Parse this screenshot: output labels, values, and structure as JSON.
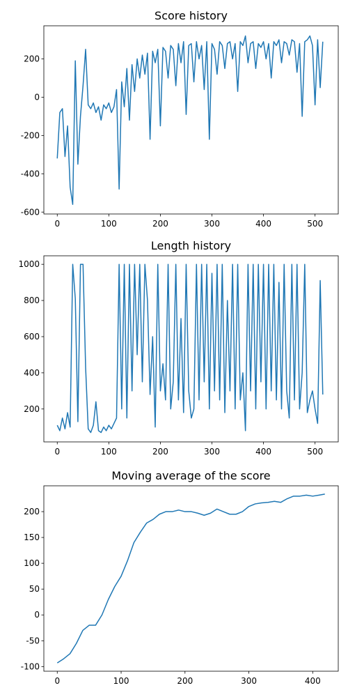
{
  "chart_data": [
    {
      "type": "line",
      "title": "Score history",
      "color": "#1f77b4",
      "grid": false,
      "xlim": [
        -26,
        545
      ],
      "ylim": [
        -610,
        373
      ],
      "xticks": [
        0,
        100,
        200,
        300,
        400,
        500
      ],
      "yticks": [
        -600,
        -400,
        -200,
        0,
        200
      ],
      "x": [
        0,
        5,
        10,
        15,
        20,
        25,
        30,
        35,
        40,
        45,
        50,
        55,
        60,
        65,
        70,
        75,
        80,
        85,
        90,
        95,
        100,
        105,
        110,
        115,
        120,
        125,
        130,
        135,
        140,
        145,
        150,
        155,
        160,
        165,
        170,
        175,
        180,
        185,
        190,
        195,
        200,
        205,
        210,
        215,
        220,
        225,
        230,
        235,
        240,
        245,
        250,
        255,
        260,
        265,
        270,
        275,
        280,
        285,
        290,
        295,
        300,
        305,
        310,
        315,
        320,
        325,
        330,
        335,
        340,
        345,
        350,
        355,
        360,
        365,
        370,
        375,
        380,
        385,
        390,
        395,
        400,
        405,
        410,
        415,
        420,
        425,
        430,
        435,
        440,
        445,
        450,
        455,
        460,
        465,
        470,
        475,
        480,
        485,
        490,
        495,
        500,
        505,
        510,
        515
      ],
      "series": [
        {
          "name": "score",
          "color": "#1f77b4",
          "values": [
            -320,
            -80,
            -60,
            -310,
            -150,
            -470,
            -560,
            190,
            -350,
            -100,
            60,
            250,
            -40,
            -60,
            -30,
            -80,
            -50,
            -120,
            -40,
            -60,
            -30,
            -80,
            -50,
            40,
            -480,
            80,
            -50,
            150,
            -120,
            170,
            30,
            200,
            100,
            220,
            120,
            230,
            -220,
            240,
            180,
            250,
            -150,
            260,
            240,
            100,
            270,
            250,
            60,
            280,
            180,
            290,
            -90,
            270,
            280,
            80,
            290,
            200,
            270,
            40,
            290,
            -220,
            280,
            250,
            120,
            290,
            270,
            150,
            280,
            290,
            200,
            280,
            30,
            290,
            270,
            320,
            180,
            280,
            290,
            150,
            280,
            260,
            290,
            200,
            280,
            100,
            290,
            270,
            300,
            180,
            290,
            280,
            220,
            300,
            290,
            130,
            280,
            -100,
            290,
            300,
            320,
            270,
            -40,
            300,
            50,
            290
          ]
        }
      ]
    },
    {
      "type": "line",
      "title": "Length history",
      "color": "#1f77b4",
      "grid": false,
      "xlim": [
        -26,
        545
      ],
      "ylim": [
        18,
        1047
      ],
      "xticks": [
        0,
        100,
        200,
        300,
        400,
        500
      ],
      "yticks": [
        200,
        400,
        600,
        800,
        1000
      ],
      "x": [
        0,
        5,
        10,
        15,
        20,
        25,
        30,
        35,
        40,
        45,
        50,
        55,
        60,
        65,
        70,
        75,
        80,
        85,
        90,
        95,
        100,
        105,
        110,
        115,
        120,
        125,
        130,
        135,
        140,
        145,
        150,
        155,
        160,
        165,
        170,
        175,
        180,
        185,
        190,
        195,
        200,
        205,
        210,
        215,
        220,
        225,
        230,
        235,
        240,
        245,
        250,
        255,
        260,
        265,
        270,
        275,
        280,
        285,
        290,
        295,
        300,
        305,
        310,
        315,
        320,
        325,
        330,
        335,
        340,
        345,
        350,
        355,
        360,
        365,
        370,
        375,
        380,
        385,
        390,
        395,
        400,
        405,
        410,
        415,
        420,
        425,
        430,
        435,
        440,
        445,
        450,
        455,
        460,
        465,
        470,
        475,
        480,
        485,
        490,
        495,
        500,
        505,
        510,
        515
      ],
      "series": [
        {
          "name": "length",
          "color": "#1f77b4",
          "values": [
            110,
            80,
            150,
            90,
            180,
            100,
            1000,
            810,
            130,
            1000,
            1000,
            430,
            90,
            70,
            110,
            240,
            80,
            70,
            100,
            80,
            110,
            90,
            120,
            150,
            1000,
            200,
            1000,
            150,
            1000,
            300,
            1000,
            500,
            1000,
            350,
            1000,
            800,
            280,
            600,
            100,
            1000,
            300,
            450,
            250,
            1000,
            200,
            350,
            1000,
            250,
            700,
            180,
            1000,
            300,
            150,
            200,
            1000,
            250,
            1000,
            350,
            1000,
            200,
            950,
            300,
            1000,
            250,
            1000,
            180,
            800,
            300,
            1000,
            200,
            1000,
            250,
            400,
            80,
            1000,
            300,
            1000,
            200,
            1000,
            350,
            1000,
            200,
            1000,
            300,
            1000,
            250,
            900,
            200,
            1000,
            300,
            150,
            1000,
            250,
            1000,
            200,
            400,
            1000,
            180,
            250,
            300,
            200,
            120,
            910,
            280
          ]
        }
      ]
    },
    {
      "type": "line",
      "title": "Moving average of the score",
      "color": "#1f77b4",
      "grid": false,
      "xlim": [
        -21,
        440
      ],
      "ylim": [
        -109,
        250
      ],
      "xticks": [
        0,
        100,
        200,
        300,
        400
      ],
      "yticks": [
        -100,
        -50,
        0,
        50,
        100,
        150,
        200
      ],
      "x": [
        0,
        10,
        20,
        30,
        40,
        50,
        60,
        70,
        80,
        90,
        100,
        110,
        120,
        130,
        140,
        150,
        160,
        170,
        180,
        190,
        200,
        210,
        220,
        230,
        240,
        250,
        260,
        270,
        280,
        290,
        300,
        310,
        320,
        330,
        340,
        350,
        360,
        370,
        380,
        390,
        400,
        410,
        419
      ],
      "series": [
        {
          "name": "moving average",
          "color": "#1f77b4",
          "values": [
            -93,
            -85,
            -75,
            -55,
            -30,
            -20,
            -20,
            0,
            30,
            55,
            75,
            105,
            140,
            160,
            178,
            185,
            195,
            200,
            200,
            203,
            200,
            200,
            197,
            193,
            197,
            205,
            200,
            195,
            195,
            200,
            210,
            215,
            217,
            218,
            220,
            218,
            225,
            230,
            230,
            232,
            230,
            232,
            234
          ]
        }
      ]
    }
  ]
}
